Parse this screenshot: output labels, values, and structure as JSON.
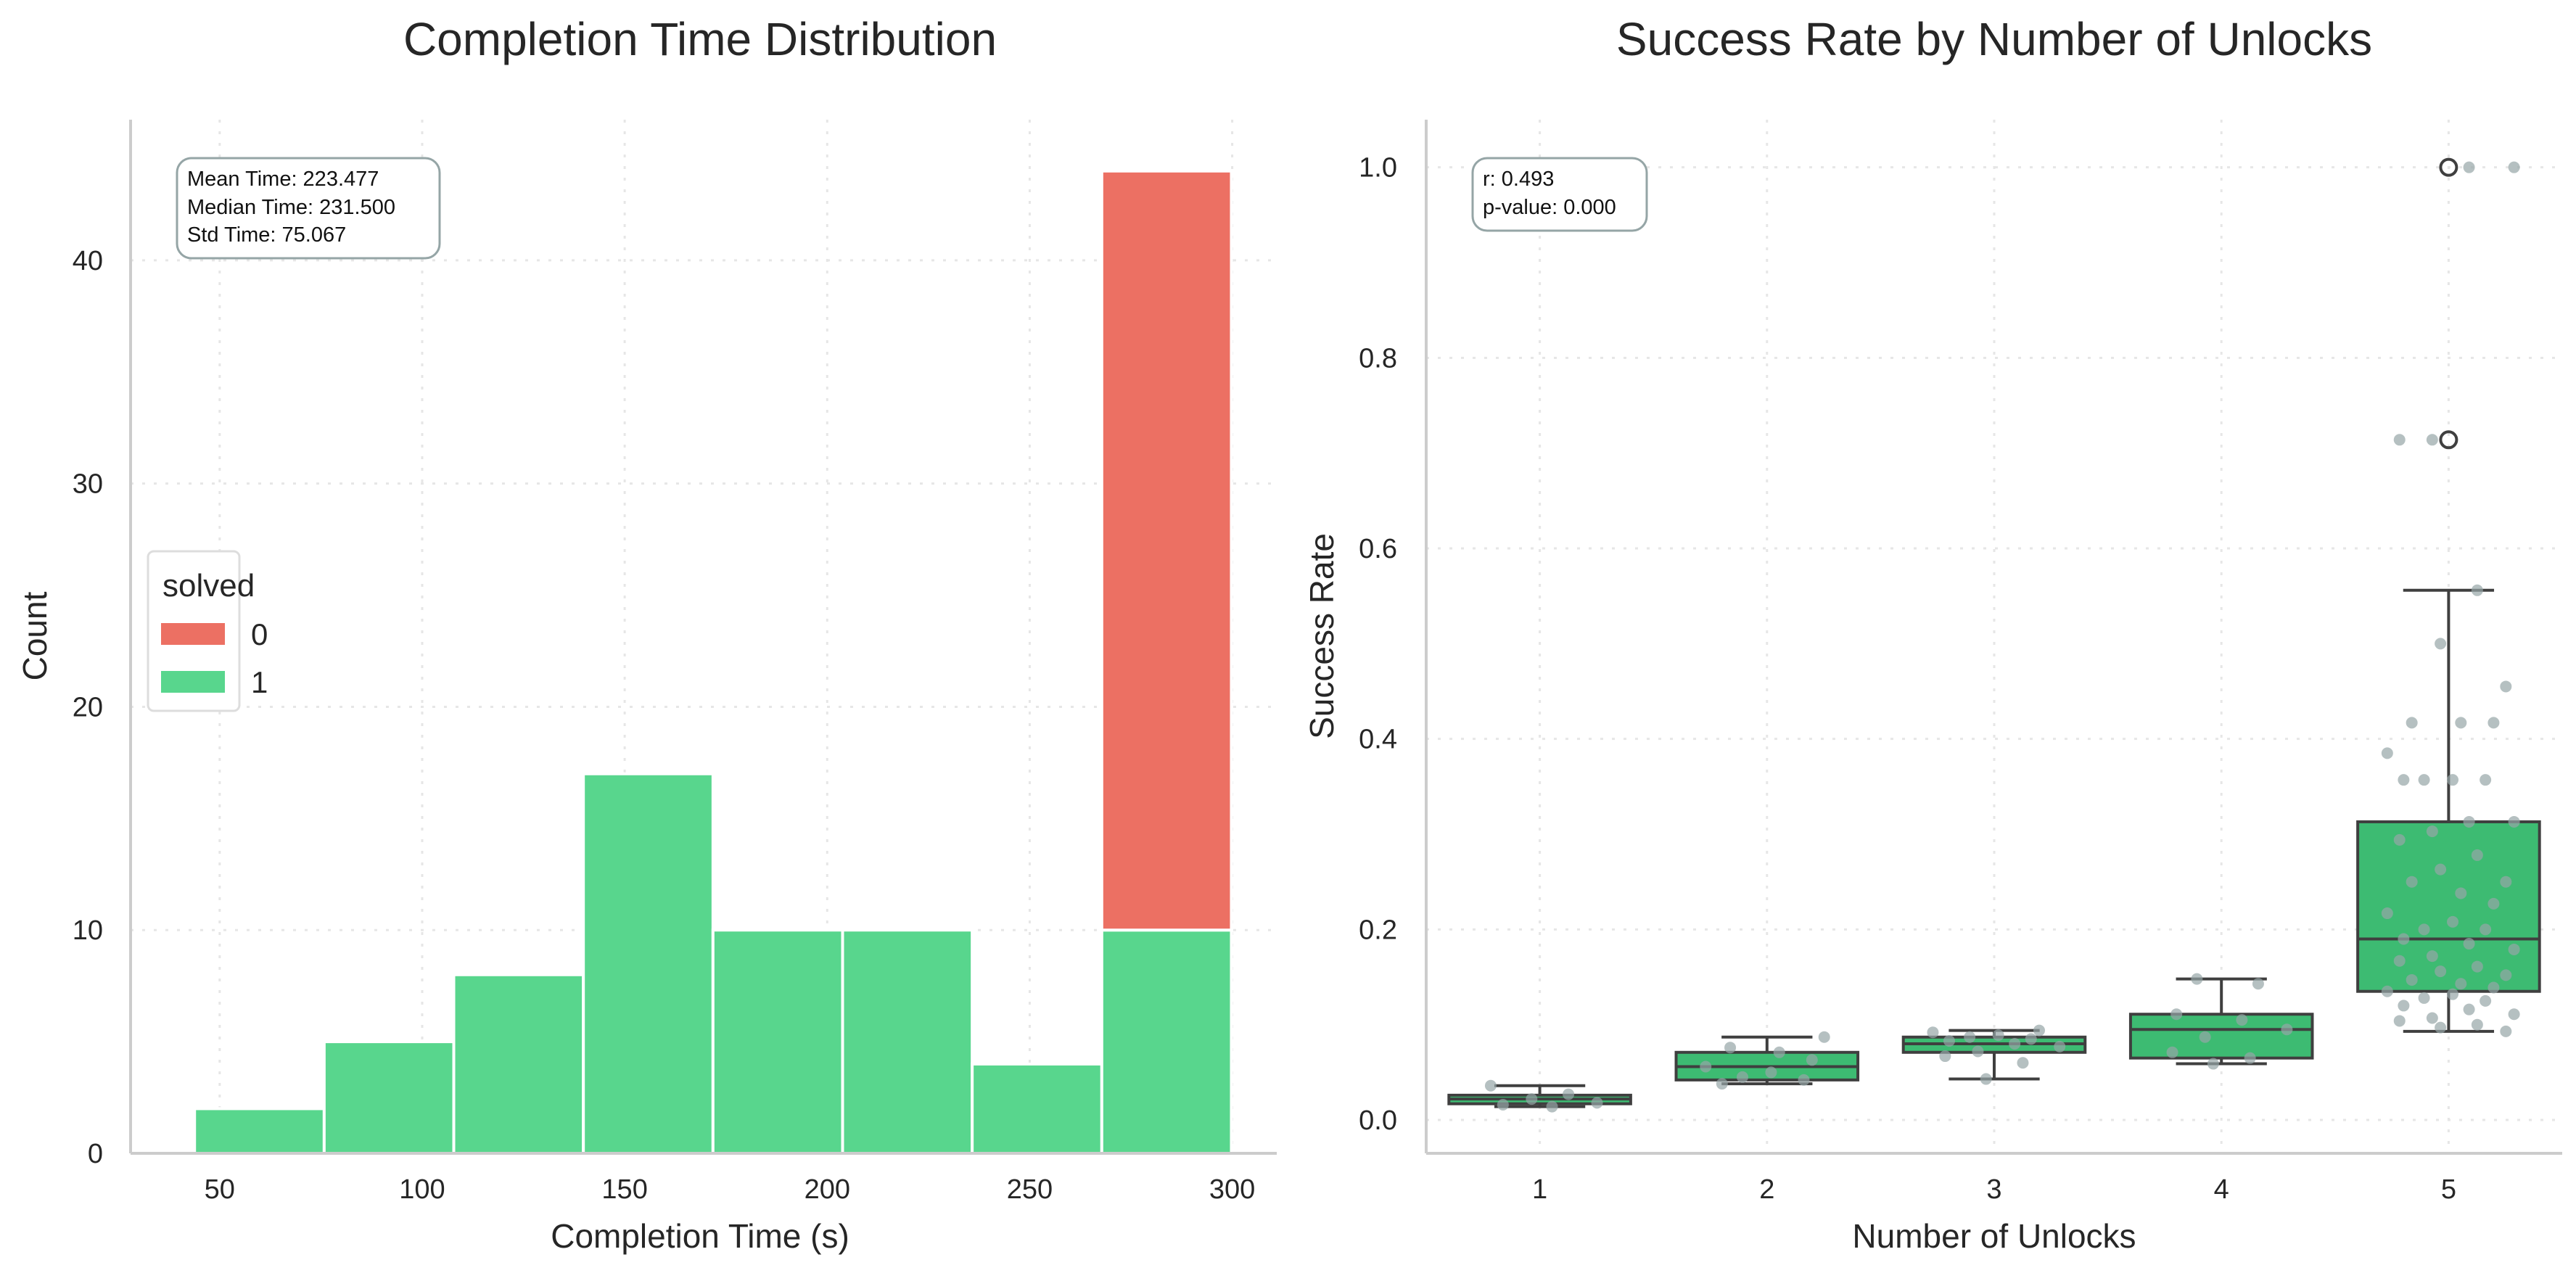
{
  "chart_data": [
    {
      "type": "bar",
      "title": "Completion Time Distribution",
      "xlabel": "Completion Time (s)",
      "ylabel": "Count",
      "xlim": [
        28,
        311
      ],
      "ylim": [
        0,
        46.3
      ],
      "xticks": [
        50,
        100,
        150,
        200,
        250,
        300
      ],
      "yticks": [
        0,
        10,
        20,
        30,
        40
      ],
      "bin_edges": [
        43.8,
        75.8,
        107.8,
        139.8,
        171.8,
        203.8,
        235.8,
        267.8,
        299.8
      ],
      "stacked": true,
      "series": [
        {
          "name": "1",
          "color": "#58d68d",
          "values": [
            2,
            5,
            8,
            17,
            10,
            10,
            4,
            10
          ]
        },
        {
          "name": "0",
          "color": "#ec7063",
          "values": [
            0,
            0,
            0,
            0,
            0,
            0,
            0,
            34
          ]
        }
      ],
      "legend": {
        "title": "solved",
        "position": "center-left",
        "entries": [
          "0",
          "1"
        ]
      },
      "annotation": [
        "Mean Time: 223.477",
        "Median Time: 231.500",
        "Std Time: 75.067"
      ],
      "grid": true
    },
    {
      "type": "box",
      "title": "Success Rate by Number of Unlocks",
      "xlabel": "Number of Unlocks",
      "ylabel": "Success Rate",
      "ylim": [
        -0.035,
        1.05
      ],
      "yticks": [
        0.0,
        0.2,
        0.4,
        0.6,
        0.8,
        1.0
      ],
      "ytick_labels": [
        "0.0",
        "0.2",
        "0.4",
        "0.6",
        "0.8",
        "1.0"
      ],
      "categories": [
        "1",
        "2",
        "3",
        "4",
        "5"
      ],
      "box_color": "#3dbb72",
      "point_color": "#95a5a6",
      "boxes": [
        {
          "category": "1",
          "whislo": 0.014,
          "q1": 0.017,
          "med": 0.022,
          "q3": 0.026,
          "whishi": 0.036,
          "fliers": []
        },
        {
          "category": "2",
          "whislo": 0.038,
          "q1": 0.042,
          "med": 0.056,
          "q3": 0.071,
          "whishi": 0.087,
          "fliers": []
        },
        {
          "category": "3",
          "whislo": 0.043,
          "q1": 0.071,
          "med": 0.08,
          "q3": 0.087,
          "whishi": 0.094,
          "fliers": []
        },
        {
          "category": "4",
          "whislo": 0.059,
          "q1": 0.065,
          "med": 0.095,
          "q3": 0.111,
          "whishi": 0.148,
          "fliers": []
        },
        {
          "category": "5",
          "whislo": 0.093,
          "q1": 0.135,
          "med": 0.19,
          "q3": 0.313,
          "whishi": 0.556,
          "fliers": [
            0.714,
            1.0
          ]
        }
      ],
      "points": [
        {
          "x": 1,
          "values": [
            0.036,
            0.027,
            0.022,
            0.018,
            0.016,
            0.014
          ]
        },
        {
          "x": 2,
          "values": [
            0.087,
            0.076,
            0.071,
            0.063,
            0.056,
            0.05,
            0.045,
            0.042,
            0.038
          ]
        },
        {
          "x": 3,
          "values": [
            0.094,
            0.092,
            0.089,
            0.087,
            0.085,
            0.083,
            0.08,
            0.077,
            0.072,
            0.067,
            0.06,
            0.043
          ]
        },
        {
          "x": 4,
          "values": [
            0.148,
            0.143,
            0.111,
            0.105,
            0.095,
            0.087,
            0.071,
            0.065,
            0.059
          ]
        },
        {
          "x": 5,
          "values": [
            1.0,
            1.0,
            0.714,
            0.714,
            0.556,
            0.5,
            0.455,
            0.417,
            0.417,
            0.417,
            0.385,
            0.357,
            0.357,
            0.357,
            0.357,
            0.313,
            0.313,
            0.303,
            0.294,
            0.278,
            0.263,
            0.25,
            0.25,
            0.238,
            0.227,
            0.217,
            0.208,
            0.2,
            0.2,
            0.19,
            0.185,
            0.179,
            0.172,
            0.167,
            0.161,
            0.156,
            0.152,
            0.147,
            0.143,
            0.139,
            0.135,
            0.132,
            0.128,
            0.125,
            0.12,
            0.116,
            0.111,
            0.107,
            0.104,
            0.1,
            0.097,
            0.093
          ]
        }
      ],
      "annotation": [
        "r: 0.493",
        "p-value: 0.000"
      ],
      "grid": true
    }
  ]
}
